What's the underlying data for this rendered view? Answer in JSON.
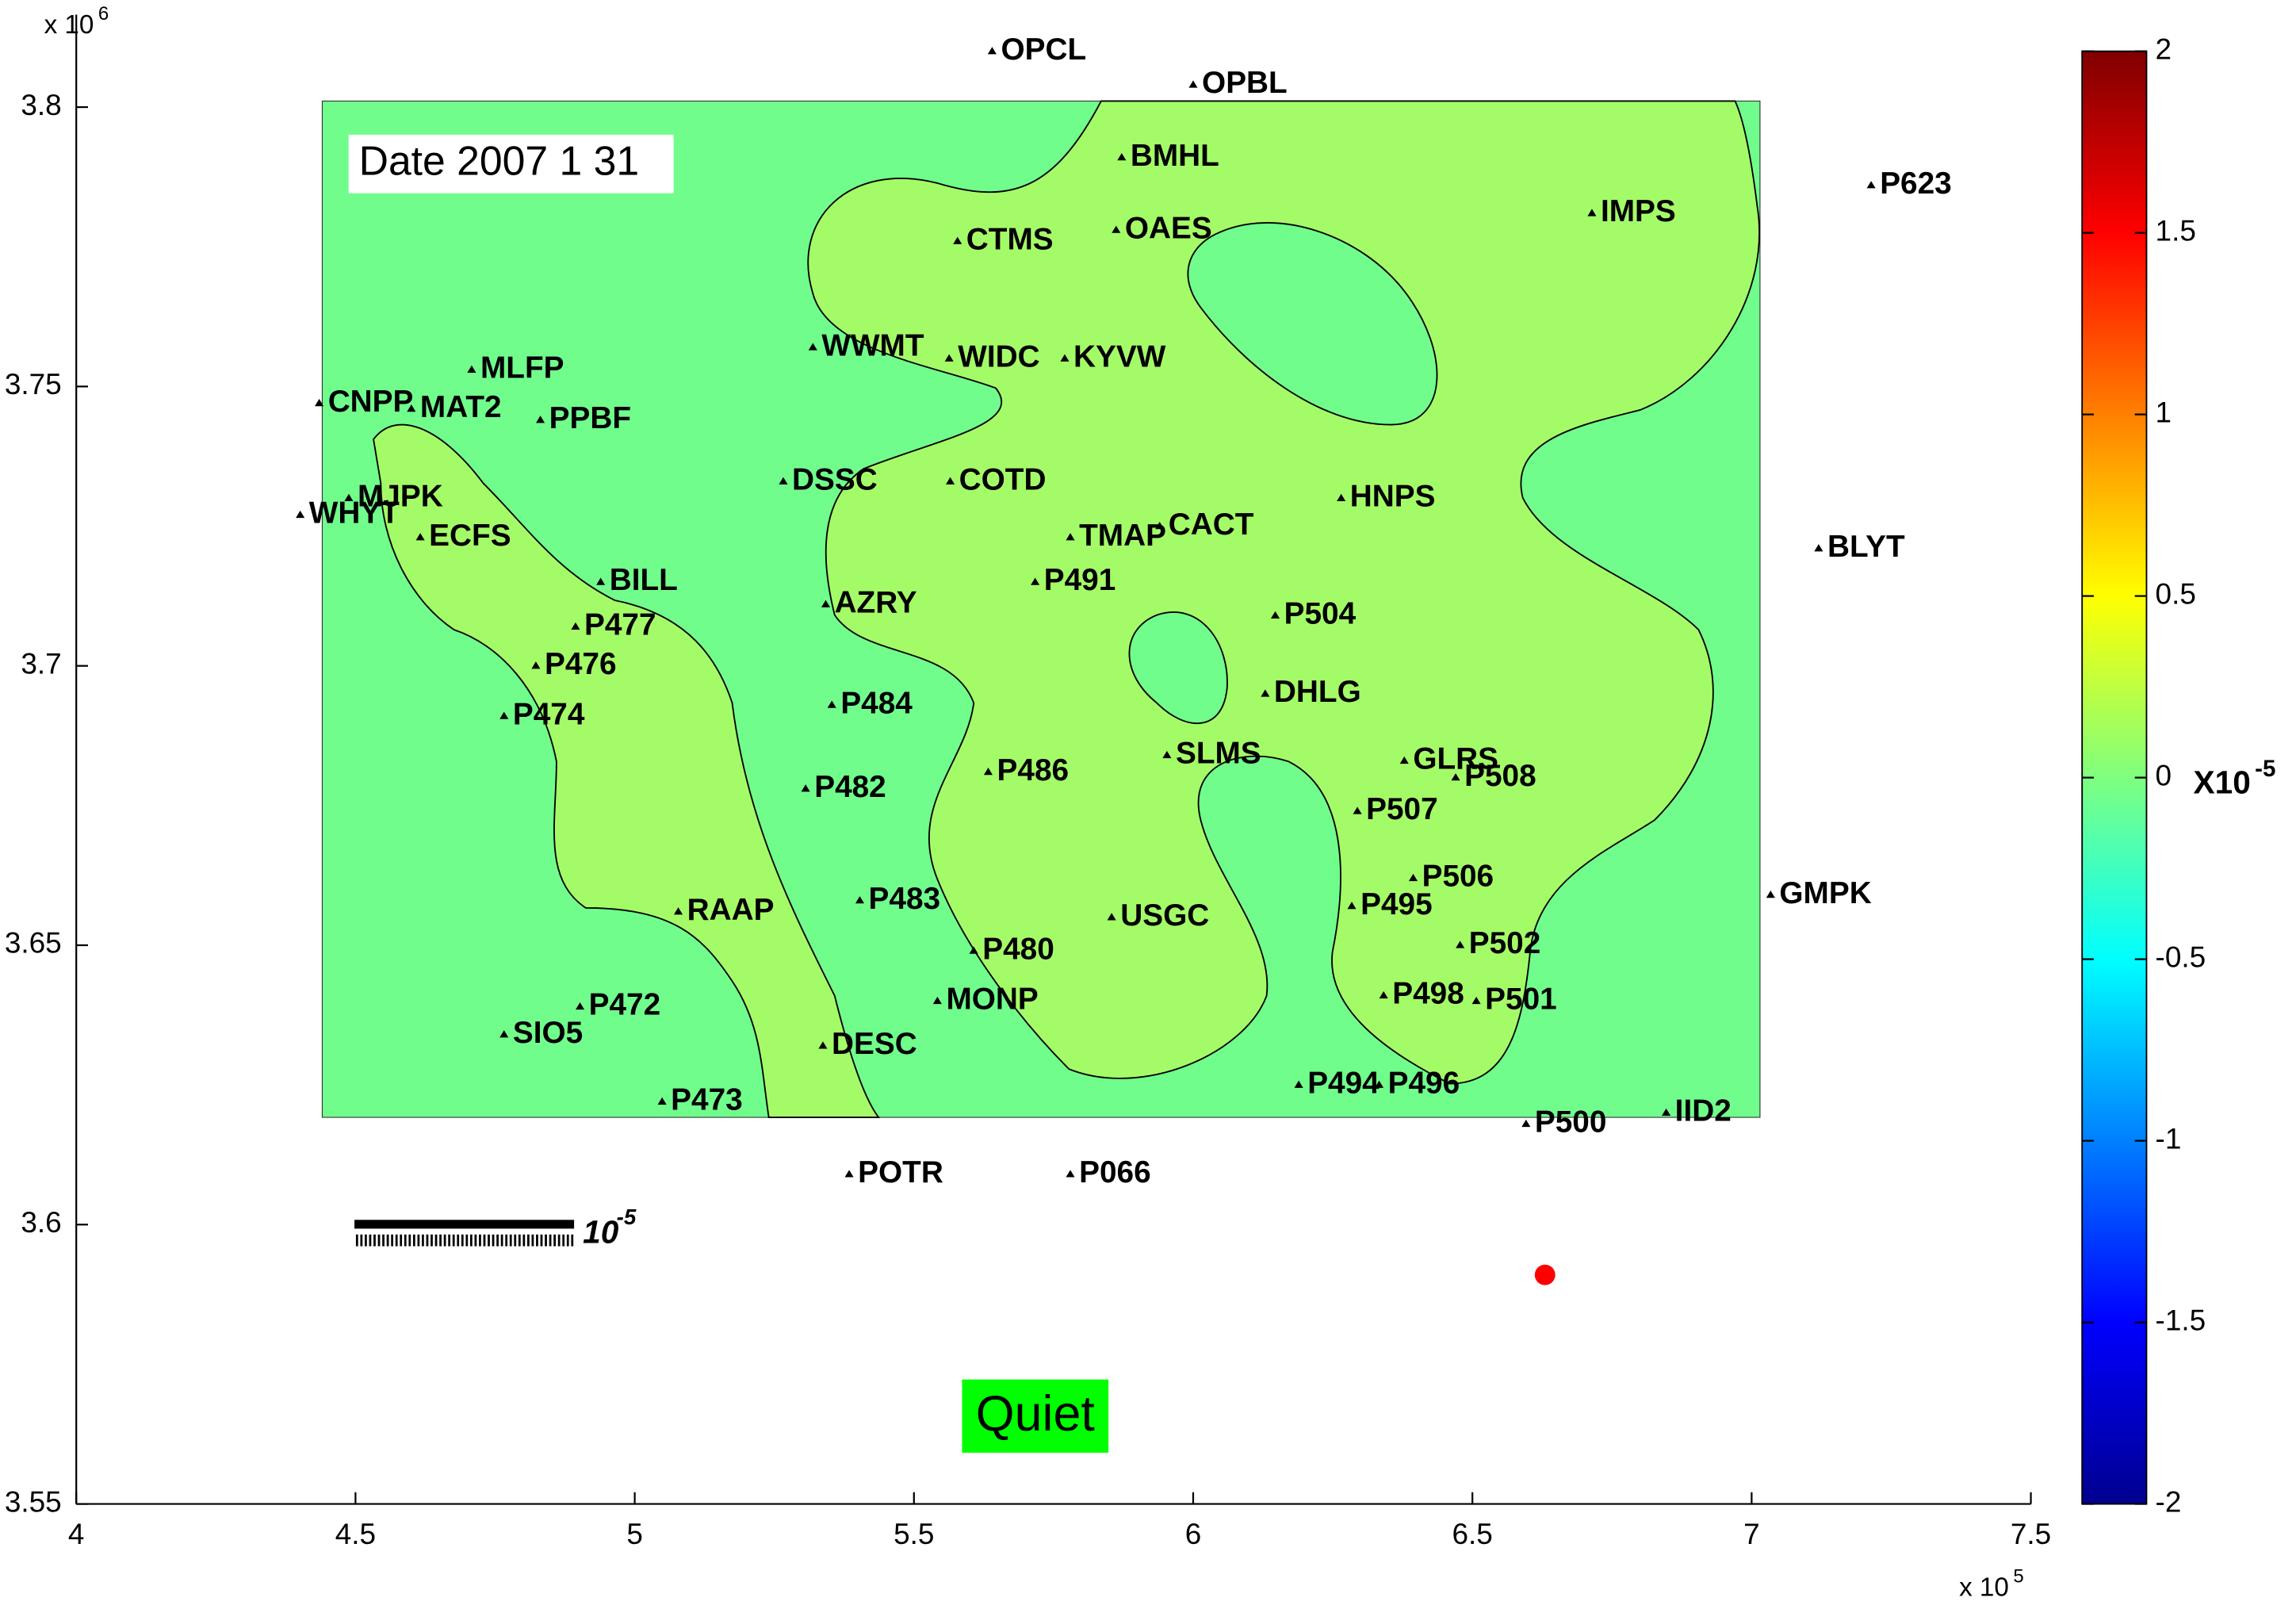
{
  "chart_data": {
    "type": "scatter",
    "date_label": "Date 2007 1 31",
    "status": "Quiet",
    "x_multiplier": {
      "base": "x 10",
      "power": 5
    },
    "y_multiplier": {
      "base": "x 10",
      "power": 6
    },
    "xlim": [
      4,
      7.5
    ],
    "ylim": [
      3.55,
      3.81
    ],
    "xticks": [
      4,
      4.5,
      5,
      5.5,
      6,
      6.5,
      7,
      7.5
    ],
    "yticks": [
      3.55,
      3.6,
      3.65,
      3.7,
      3.75,
      3.8
    ],
    "marker_color": "#000000",
    "labels": [
      "OPCL",
      "OPBL",
      "BMHL",
      "CTMS",
      "OAES",
      "IMPS",
      "P623",
      "WWMT",
      "WIDC",
      "KYVW",
      "MLFP",
      "CNPP",
      "MAT2",
      "PPBF",
      "DSSC",
      "COTD",
      "HNPS",
      "MJPK",
      "WHYT",
      "ECFS",
      "TMAP",
      "CACT",
      "P491",
      "BLYT",
      "BILL",
      "AZRY",
      "P504",
      "P477",
      "P476",
      "DHLG",
      "P484",
      "P474",
      "SLMS",
      "GLRS",
      "P508",
      "P486",
      "P482",
      "P507",
      "GMPK",
      "P506",
      "P483",
      "RAAP",
      "P495",
      "USGC",
      "P502",
      "P480",
      "P498",
      "P501",
      "MONP",
      "P472",
      "SIO5",
      "DESC",
      "P494",
      "P496",
      "P473",
      "IID2",
      "P500",
      "POTR",
      "P066"
    ],
    "x": [
      5.64,
      6.0,
      5.872,
      5.578,
      5.862,
      6.714,
      7.214,
      5.319,
      5.563,
      5.77,
      4.708,
      4.435,
      4.6,
      4.831,
      5.266,
      5.565,
      6.265,
      4.488,
      4.401,
      4.616,
      5.78,
      5.94,
      5.717,
      7.12,
      4.939,
      5.342,
      6.147,
      4.894,
      4.823,
      6.129,
      5.353,
      4.766,
      5.953,
      6.378,
      6.47,
      5.633,
      5.306,
      6.294,
      7.034,
      6.394,
      5.403,
      5.078,
      6.284,
      5.854,
      6.478,
      5.607,
      6.341,
      6.507,
      5.542,
      4.902,
      4.766,
      5.337,
      6.189,
      6.333,
      5.049,
      6.847,
      6.596,
      5.384,
      5.78
    ],
    "y": [
      3.81,
      3.804,
      3.791,
      3.776,
      3.778,
      3.781,
      3.786,
      3.757,
      3.755,
      3.755,
      3.753,
      3.747,
      3.746,
      3.744,
      3.733,
      3.733,
      3.73,
      3.73,
      3.727,
      3.723,
      3.723,
      3.725,
      3.715,
      3.721,
      3.715,
      3.711,
      3.709,
      3.707,
      3.7,
      3.695,
      3.693,
      3.691,
      3.684,
      3.683,
      3.68,
      3.681,
      3.678,
      3.674,
      3.659,
      3.662,
      3.658,
      3.656,
      3.657,
      3.655,
      3.65,
      3.649,
      3.641,
      3.64,
      3.64,
      3.639,
      3.634,
      3.632,
      3.625,
      3.625,
      3.622,
      3.62,
      3.618,
      3.609,
      3.609
    ],
    "event": {
      "x": 6.63,
      "y": 3.591,
      "color": "#ff0000"
    },
    "colorbar": {
      "label": "X10",
      "power": -5,
      "lim": [
        -2,
        2
      ],
      "ticks": [
        -2,
        -1.5,
        -1,
        -0.5,
        0,
        0.5,
        1,
        1.5,
        2
      ]
    },
    "scale_bar": {
      "base": "10",
      "power": -5
    }
  }
}
